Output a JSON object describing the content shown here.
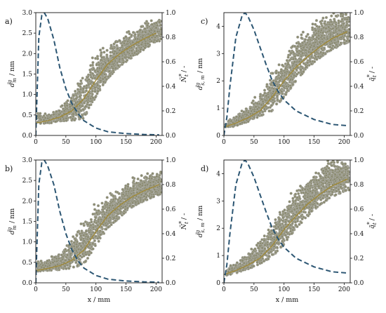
{
  "chart_data": [
    {
      "panel": "a)",
      "type": "scatter",
      "xlabel": "",
      "ylabel": "d̃_m^g / nm",
      "y2label": "Ñ_t* / -",
      "xlim": [
        0,
        210
      ],
      "ylim": [
        0,
        3.0
      ],
      "y2lim": [
        0,
        1.0
      ],
      "x_ticks": [
        "0",
        "50",
        "100",
        "150",
        "200"
      ],
      "y_ticks": [
        "0.0",
        "0.5",
        "1.0",
        "1.5",
        "2.0",
        "2.5",
        "3.0"
      ],
      "y2_ticks": [
        "0.0",
        "0.2",
        "0.4",
        "0.6",
        "0.8",
        "1.0"
      ],
      "scatter_trend": {
        "x": [
          0,
          20,
          40,
          60,
          80,
          100,
          120,
          140,
          160,
          180,
          200
        ],
        "y": [
          0.3,
          0.36,
          0.45,
          0.6,
          0.9,
          1.35,
          1.75,
          2.0,
          2.2,
          2.36,
          2.5
        ]
      },
      "scatter_band": {
        "x": [
          0,
          20,
          40,
          60,
          80,
          100,
          120,
          140,
          160,
          180,
          200
        ],
        "low": [
          0.28,
          0.3,
          0.32,
          0.36,
          0.42,
          0.95,
          1.4,
          1.7,
          1.9,
          2.1,
          2.3
        ],
        "high": [
          0.55,
          0.5,
          0.65,
          0.95,
          1.4,
          1.85,
          2.05,
          2.3,
          2.5,
          2.65,
          2.8
        ]
      },
      "series": [
        {
          "style": "dashed",
          "axis": "right",
          "x": [
            0,
            5,
            10,
            14,
            20,
            30,
            40,
            50,
            60,
            70,
            80,
            100,
            120,
            150,
            180,
            205
          ],
          "y": [
            0,
            0.8,
            0.98,
            1.0,
            0.95,
            0.78,
            0.55,
            0.38,
            0.26,
            0.18,
            0.12,
            0.06,
            0.03,
            0.015,
            0.008,
            0.005
          ]
        }
      ]
    },
    {
      "panel": "c)",
      "type": "scatter",
      "xlabel": "",
      "ylabel": "d̃_(s,m)^g / nm",
      "y2label": "q̃_t* / -",
      "xlim": [
        0,
        210
      ],
      "ylim": [
        0,
        4.5
      ],
      "y2lim": [
        0,
        1.0
      ],
      "x_ticks": [
        "0",
        "50",
        "100",
        "150",
        "200"
      ],
      "y_ticks": [
        "0",
        "1",
        "2",
        "3",
        "4"
      ],
      "y2_ticks": [
        "0.0",
        "0.2",
        "0.4",
        "0.6",
        "0.8",
        "1.0"
      ],
      "scatter_trend": {
        "x": [
          0,
          20,
          40,
          60,
          80,
          100,
          120,
          140,
          160,
          180,
          205
        ],
        "y": [
          0.3,
          0.45,
          0.65,
          0.9,
          1.4,
          2.0,
          2.5,
          2.9,
          3.25,
          3.55,
          3.8
        ]
      },
      "scatter_band": {
        "x": [
          0,
          20,
          40,
          60,
          80,
          100,
          120,
          140,
          160,
          180,
          205
        ],
        "low": [
          0.25,
          0.35,
          0.5,
          0.7,
          0.9,
          1.4,
          2.0,
          2.5,
          2.85,
          3.15,
          3.4
        ],
        "high": [
          0.45,
          0.7,
          1.0,
          1.4,
          2.1,
          2.7,
          3.3,
          3.7,
          4.1,
          4.3,
          4.4
        ]
      },
      "series": [
        {
          "style": "dashed",
          "axis": "right",
          "x": [
            0,
            5,
            10,
            20,
            30,
            35,
            40,
            50,
            60,
            70,
            80,
            90,
            100,
            120,
            150,
            180,
            205
          ],
          "y": [
            0,
            0.15,
            0.4,
            0.8,
            0.97,
            1.0,
            0.97,
            0.86,
            0.72,
            0.58,
            0.45,
            0.36,
            0.29,
            0.2,
            0.13,
            0.09,
            0.08
          ]
        }
      ]
    },
    {
      "panel": "b)",
      "type": "scatter",
      "xlabel": "x / mm",
      "ylabel": "d̃_m^g / nm",
      "y2label": "Ñ_t* / -",
      "xlim": [
        0,
        210
      ],
      "ylim": [
        0,
        3.0
      ],
      "y2lim": [
        0,
        1.0
      ],
      "x_ticks": [
        "0",
        "50",
        "100",
        "150",
        "200"
      ],
      "y_ticks": [
        "0.0",
        "0.5",
        "1.0",
        "1.5",
        "2.0",
        "2.5",
        "3.0"
      ],
      "y2_ticks": [
        "0.0",
        "0.2",
        "0.4",
        "0.6",
        "0.8",
        "1.0"
      ],
      "scatter_trend": {
        "x": [
          0,
          20,
          40,
          60,
          80,
          100,
          120,
          140,
          160,
          180,
          205
        ],
        "y": [
          0.3,
          0.35,
          0.42,
          0.55,
          0.8,
          1.25,
          1.65,
          1.9,
          2.1,
          2.25,
          2.4
        ]
      },
      "scatter_band": {
        "x": [
          0,
          20,
          40,
          60,
          80,
          100,
          120,
          140,
          160,
          180,
          205
        ],
        "low": [
          0.28,
          0.3,
          0.32,
          0.36,
          0.45,
          0.9,
          1.35,
          1.6,
          1.85,
          2.0,
          2.15
        ],
        "high": [
          0.5,
          0.55,
          0.7,
          1.0,
          1.4,
          1.8,
          2.0,
          2.2,
          2.4,
          2.55,
          2.65
        ]
      },
      "series": [
        {
          "style": "dashed",
          "axis": "right",
          "x": [
            0,
            5,
            10,
            14,
            20,
            30,
            40,
            50,
            60,
            70,
            80,
            100,
            120,
            150,
            180,
            205
          ],
          "y": [
            0,
            0.8,
            0.98,
            1.0,
            0.95,
            0.8,
            0.58,
            0.4,
            0.27,
            0.18,
            0.12,
            0.06,
            0.03,
            0.015,
            0.008,
            0.005
          ]
        }
      ]
    },
    {
      "panel": "d)",
      "type": "scatter",
      "xlabel": "x / mm",
      "ylabel": "d̃_(s,m)^g / nm",
      "y2label": "q̃_t* / -",
      "xlim": [
        0,
        210
      ],
      "ylim": [
        0,
        4.5
      ],
      "y2lim": [
        0,
        1.0
      ],
      "x_ticks": [
        "0",
        "50",
        "100",
        "150",
        "200"
      ],
      "y_ticks": [
        "0",
        "1",
        "2",
        "3",
        "4"
      ],
      "y2_ticks": [
        "0.0",
        "0.2",
        "0.4",
        "0.6",
        "0.8",
        "1.0"
      ],
      "scatter_trend": {
        "x": [
          0,
          20,
          40,
          60,
          80,
          100,
          120,
          140,
          160,
          180,
          205
        ],
        "y": [
          0.3,
          0.45,
          0.65,
          0.9,
          1.35,
          1.95,
          2.45,
          2.9,
          3.25,
          3.55,
          3.8
        ]
      },
      "scatter_band": {
        "x": [
          0,
          20,
          40,
          60,
          80,
          100,
          120,
          140,
          160,
          180,
          205
        ],
        "low": [
          0.25,
          0.35,
          0.5,
          0.7,
          0.95,
          1.4,
          2.0,
          2.45,
          2.85,
          3.15,
          3.4
        ],
        "high": [
          0.45,
          0.7,
          1.0,
          1.4,
          2.0,
          2.7,
          3.3,
          3.7,
          4.05,
          4.3,
          4.4
        ]
      },
      "series": [
        {
          "style": "dashed",
          "axis": "right",
          "x": [
            0,
            5,
            10,
            20,
            30,
            35,
            40,
            50,
            60,
            70,
            80,
            90,
            100,
            120,
            150,
            180,
            205
          ],
          "y": [
            0,
            0.15,
            0.4,
            0.8,
            0.97,
            1.0,
            0.97,
            0.86,
            0.72,
            0.58,
            0.45,
            0.36,
            0.29,
            0.2,
            0.13,
            0.09,
            0.08
          ]
        }
      ]
    }
  ],
  "colors": {
    "scatter_fill": "#8c8c72",
    "scatter_edge": "#b8b8b8",
    "trend_line": "#a08a3a",
    "dashed_line": "#2c5673",
    "axis": "#111111"
  }
}
